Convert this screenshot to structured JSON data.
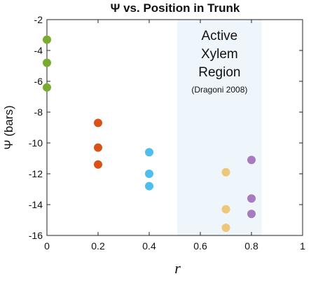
{
  "chart_data": {
    "type": "scatter",
    "title": "Ψ vs. Position in Trunk",
    "xlabel": "r",
    "ylabel": "Ψ (bars)",
    "xlim": [
      0,
      1
    ],
    "ylim": [
      -16,
      -2
    ],
    "x_ticks": [
      "0",
      "0.2",
      "0.4",
      "0.6",
      "0.8",
      "1"
    ],
    "y_ticks": [
      "-2",
      "-4",
      "-6",
      "-8",
      "-10",
      "-12",
      "-14",
      "-16"
    ],
    "grid": false,
    "legend": "none",
    "shaded_region": {
      "x_start": 0.51,
      "x_end": 0.84,
      "color": "#eef6fb",
      "label_lines": [
        "Active",
        "Xylem",
        "Region"
      ],
      "citation": "(Dragoni 2008)"
    },
    "series": [
      {
        "color": "#77ac30",
        "points": [
          {
            "x": 0.0,
            "y": -3.3
          },
          {
            "x": 0.0,
            "y": -4.8
          },
          {
            "x": 0.0,
            "y": -6.4
          }
        ]
      },
      {
        "color": "#d95319",
        "points": [
          {
            "x": 0.2,
            "y": -8.7
          },
          {
            "x": 0.2,
            "y": -10.3
          },
          {
            "x": 0.2,
            "y": -11.4
          }
        ]
      },
      {
        "color": "#4dbeee",
        "points": [
          {
            "x": 0.4,
            "y": -10.6
          },
          {
            "x": 0.4,
            "y": -12.0
          },
          {
            "x": 0.4,
            "y": -12.8
          }
        ]
      },
      {
        "color": "#edc77a",
        "points": [
          {
            "x": 0.7,
            "y": -11.9
          },
          {
            "x": 0.7,
            "y": -14.3
          },
          {
            "x": 0.7,
            "y": -15.5
          }
        ]
      },
      {
        "color": "#a77bbf",
        "points": [
          {
            "x": 0.8,
            "y": -11.1
          },
          {
            "x": 0.8,
            "y": -13.6
          },
          {
            "x": 0.8,
            "y": -14.6
          }
        ]
      }
    ]
  }
}
